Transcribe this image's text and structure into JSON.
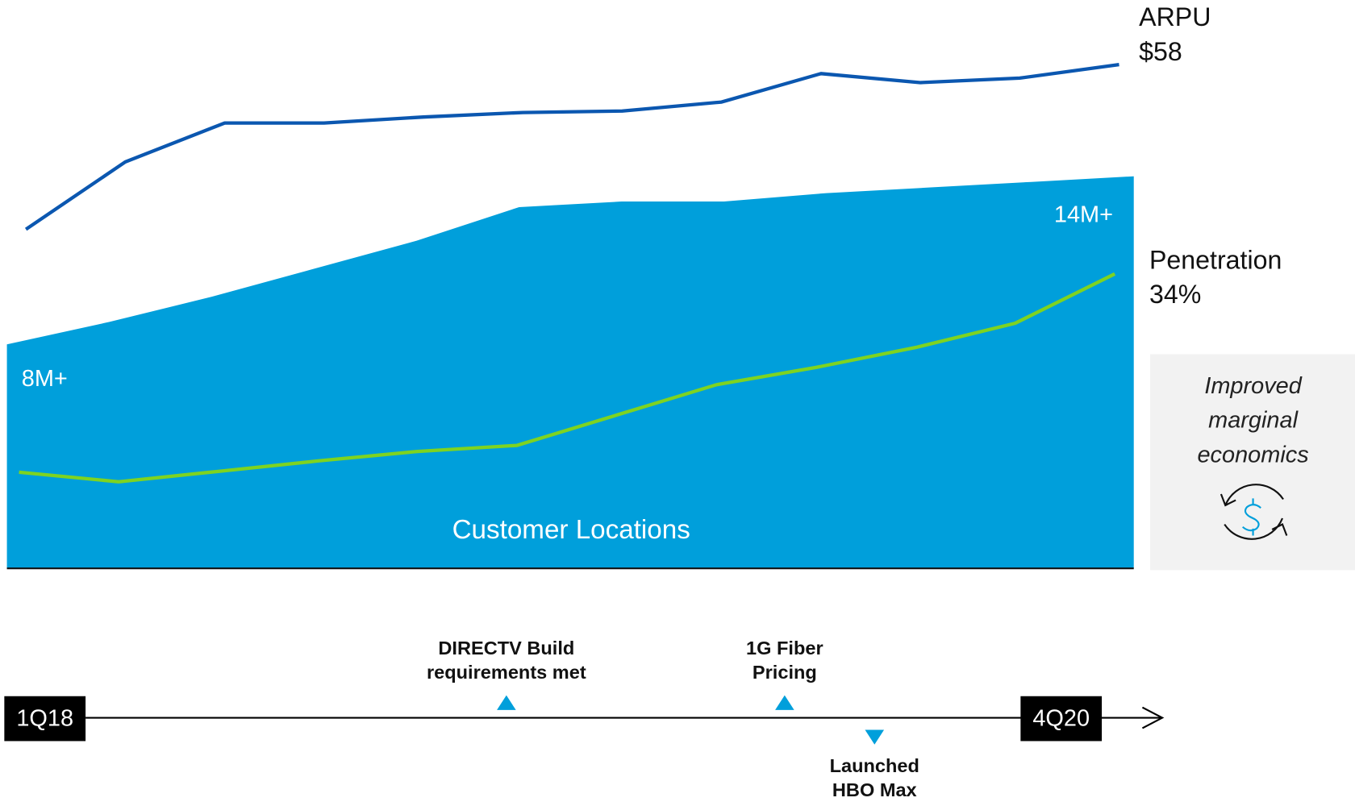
{
  "chart_data": [
    {
      "type": "line",
      "name": "ARPU",
      "color": "#0b57b0",
      "values": [
        47,
        51.5,
        54.1,
        54.1,
        54.5,
        54.8,
        54.9,
        55.5,
        57.4,
        56.8,
        57.1,
        58
      ],
      "value_labels": [
        null,
        null,
        null,
        null,
        null,
        null,
        null,
        null,
        null,
        null,
        null,
        "$58"
      ],
      "ylim": [
        45,
        60
      ]
    },
    {
      "type": "area",
      "name": "Customer Locations",
      "color": "#009fdb",
      "values": [
        8,
        8.8,
        9.7,
        10.7,
        11.7,
        12.9,
        13.1,
        13.1,
        13.4,
        13.6,
        13.8,
        14
      ],
      "value_labels": [
        "8M+",
        null,
        null,
        null,
        null,
        null,
        null,
        null,
        null,
        null,
        null,
        "14M+"
      ],
      "ylim": [
        0,
        14
      ]
    },
    {
      "type": "line",
      "name": "Penetration",
      "color": "#7ed321",
      "values": [
        11.1,
        10,
        11.2,
        12.4,
        13.5,
        14.2,
        17.7,
        21.2,
        23.2,
        25.5,
        28.3,
        34
      ],
      "value_labels": [
        null,
        null,
        null,
        null,
        null,
        null,
        null,
        null,
        null,
        null,
        null,
        "34%"
      ],
      "ylim": [
        0,
        34
      ]
    }
  ],
  "note": {
    "lines": [
      "Improved",
      "marginal",
      "economics"
    ]
  },
  "timeline": {
    "start": "1Q18",
    "end": "4Q20",
    "events": [
      {
        "lines": [
          "DIRECTV Build",
          "requirements met"
        ]
      },
      {
        "lines": [
          "1G Fiber",
          "Pricing"
        ]
      },
      {
        "lines": [
          "Launched",
          "HBO Max"
        ]
      }
    ]
  }
}
